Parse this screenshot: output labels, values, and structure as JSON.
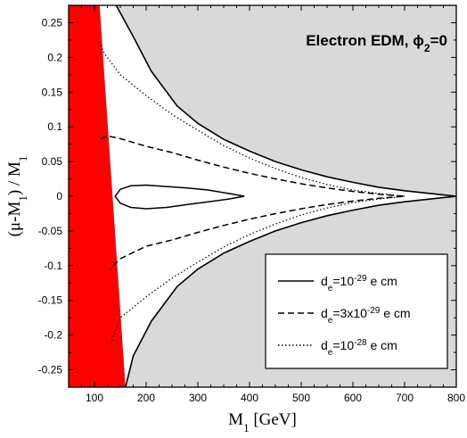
{
  "chart_data": {
    "type": "line",
    "title": "Electron EDM, ϕ",
    "title_sub": "2",
    "title_tail": "=0",
    "xlabel": "M",
    "xlabel_sub": "1",
    "xlabel_tail": "  [GeV]",
    "ylabel": "(μ-M",
    "ylabel_sub": "1",
    "ylabel_tail": ") / M",
    "ylabel_sub2": "1",
    "xlim": [
      50,
      800
    ],
    "ylim": [
      -0.275,
      0.275
    ],
    "x_ticks": [
      100,
      200,
      300,
      400,
      500,
      600,
      700,
      800
    ],
    "y_ticks": [
      0.25,
      0.2,
      0.15,
      0.1,
      0.05,
      0,
      -0.05,
      -0.1,
      -0.15,
      -0.2,
      -0.25
    ],
    "x_tick_labels": [
      "100",
      "200",
      "300",
      "400",
      "500",
      "600",
      "700",
      "800"
    ],
    "y_tick_labels": [
      "0.25",
      "0.2",
      "0.15",
      "0.1",
      "0.05",
      "0",
      "-0.05",
      "-0.1",
      "-0.15",
      "-0.2",
      "-0.25"
    ],
    "grid": false,
    "legend_position": "bottom-right",
    "colors": {
      "excluded_red": "#ff0000",
      "allowed_gray": "#d9d9d9",
      "line": "#000000"
    },
    "regions": {
      "red_band": {
        "left_edge": [
          [
            50,
            0.275
          ],
          [
            100,
            -0.275
          ]
        ],
        "right_edge": [
          [
            110,
            0.275
          ],
          [
            160,
            -0.275
          ]
        ]
      },
      "gray_upper_boundary": [
        [
          142,
          0.275
        ],
        [
          175,
          0.23
        ],
        [
          210,
          0.18
        ],
        [
          260,
          0.13
        ],
        [
          300,
          0.105
        ],
        [
          350,
          0.082
        ],
        [
          400,
          0.065
        ],
        [
          450,
          0.05
        ],
        [
          500,
          0.038
        ],
        [
          550,
          0.028
        ],
        [
          600,
          0.02
        ],
        [
          650,
          0.013
        ],
        [
          700,
          0.008
        ],
        [
          750,
          0.004
        ],
        [
          800,
          0.0
        ]
      ],
      "gray_lower_boundary": [
        [
          800,
          0.0
        ],
        [
          750,
          -0.004
        ],
        [
          700,
          -0.008
        ],
        [
          650,
          -0.013
        ],
        [
          600,
          -0.02
        ],
        [
          550,
          -0.028
        ],
        [
          500,
          -0.038
        ],
        [
          450,
          -0.05
        ],
        [
          400,
          -0.065
        ],
        [
          350,
          -0.082
        ],
        [
          300,
          -0.105
        ],
        [
          260,
          -0.13
        ],
        [
          210,
          -0.18
        ],
        [
          175,
          -0.23
        ],
        [
          160,
          -0.275
        ]
      ]
    },
    "series": [
      {
        "name": "d_e=10^-29 e cm",
        "style": "solid",
        "points": [
          [
            390,
            0.0
          ],
          [
            360,
            0.004
          ],
          [
            320,
            0.009
          ],
          [
            280,
            0.012
          ],
          [
            240,
            0.014
          ],
          [
            200,
            0.016
          ],
          [
            170,
            0.015
          ],
          [
            150,
            0.01
          ],
          [
            140,
            0.0
          ],
          [
            150,
            -0.01
          ],
          [
            170,
            -0.016
          ],
          [
            200,
            -0.018
          ],
          [
            240,
            -0.016
          ],
          [
            280,
            -0.012
          ],
          [
            320,
            -0.008
          ],
          [
            360,
            -0.004
          ],
          [
            390,
            0.0
          ]
        ]
      },
      {
        "name": "d_e=3x10^-29 e cm",
        "style": "dashed",
        "points": [
          [
            112,
            0.082
          ],
          [
            125,
            0.087
          ],
          [
            150,
            0.083
          ],
          [
            200,
            0.072
          ],
          [
            250,
            0.063
          ],
          [
            300,
            0.052
          ],
          [
            350,
            0.042
          ],
          [
            400,
            0.033
          ],
          [
            450,
            0.025
          ],
          [
            500,
            0.018
          ],
          [
            550,
            0.012
          ],
          [
            600,
            0.007
          ],
          [
            650,
            0.003
          ],
          [
            700,
            0.0
          ],
          [
            650,
            -0.003
          ],
          [
            600,
            -0.007
          ],
          [
            550,
            -0.012
          ],
          [
            500,
            -0.018
          ],
          [
            450,
            -0.025
          ],
          [
            400,
            -0.033
          ],
          [
            350,
            -0.042
          ],
          [
            300,
            -0.052
          ],
          [
            250,
            -0.063
          ],
          [
            200,
            -0.072
          ],
          [
            150,
            -0.09
          ],
          [
            130,
            -0.105
          ]
        ]
      },
      {
        "name": "d_e=10^-28 e cm",
        "style": "dotted",
        "points": [
          [
            108,
            0.222
          ],
          [
            120,
            0.205
          ],
          [
            150,
            0.175
          ],
          [
            200,
            0.145
          ],
          [
            250,
            0.118
          ],
          [
            300,
            0.095
          ],
          [
            350,
            0.073
          ],
          [
            400,
            0.055
          ],
          [
            450,
            0.04
          ],
          [
            500,
            0.027
          ],
          [
            550,
            0.017
          ],
          [
            600,
            0.009
          ],
          [
            650,
            0.004
          ],
          [
            700,
            0.0
          ],
          [
            650,
            -0.004
          ],
          [
            600,
            -0.009
          ],
          [
            550,
            -0.017
          ],
          [
            500,
            -0.027
          ],
          [
            450,
            -0.04
          ],
          [
            400,
            -0.055
          ],
          [
            350,
            -0.073
          ],
          [
            300,
            -0.095
          ],
          [
            250,
            -0.118
          ],
          [
            200,
            -0.145
          ],
          [
            150,
            -0.175
          ],
          [
            130,
            -0.215
          ]
        ]
      }
    ],
    "legend": [
      {
        "style": "solid",
        "prefix": "d",
        "sub": "e",
        "mid": "=10",
        "sup": "-29",
        "suffix": " e cm"
      },
      {
        "style": "dashed",
        "prefix": "d",
        "sub": "e",
        "mid": "=3x10",
        "sup": "-29",
        "suffix": " e cm"
      },
      {
        "style": "dotted",
        "prefix": "d",
        "sub": "e",
        "mid": "=10",
        "sup": "-28",
        "suffix": " e cm"
      }
    ]
  }
}
